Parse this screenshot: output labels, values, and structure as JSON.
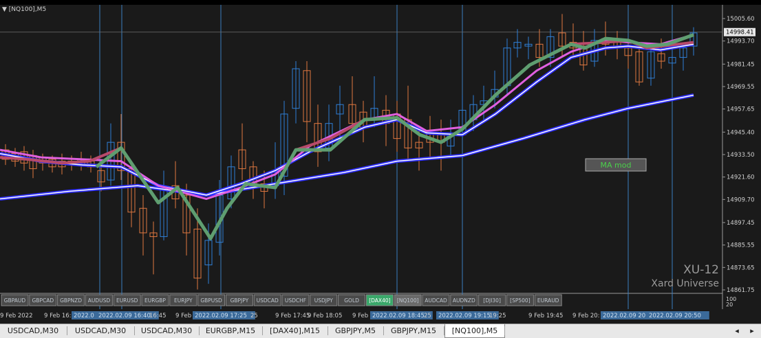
{
  "chart_title": "[NQ100],M5",
  "price_labels": [
    "15005.60",
    "14993.70",
    "14981.45",
    "14969.55",
    "14957.65",
    "14945.40",
    "14933.50",
    "14921.60",
    "14909.70",
    "14897.45",
    "14885.55",
    "14873.65",
    "14861.75"
  ],
  "current_price": "14998.41",
  "ma_label": "MA mod",
  "brand_line1": "XU-12",
  "brand_line2": "Xard Universe",
  "indicator_scale": [
    "100",
    "20"
  ],
  "symbol_buttons": [
    "GBPAUD",
    "GBPCAD",
    "GBPNZD",
    "AUDUSD",
    "EURUSD",
    "EURGBP",
    "EURJPY",
    "GBPUSD",
    "GBPJPY",
    "USDCAD",
    "USDCHF",
    "USDJPY",
    "GOLD",
    "[DAX40]",
    "[NQ100]",
    "AUDCAD",
    "AUDNZD",
    "[DJI30]",
    "[SP500]",
    "EURAUD"
  ],
  "time_labels": [
    "9 Feb 2022",
    "9 Feb 16:",
    "2022.0",
    "2022.02.09 16:40",
    "16:45",
    "9 Feb",
    "2022.02.09 17:25",
    "25",
    "9 Feb 17:45",
    "9 Feb 18:05",
    "9 Feb",
    "2022.02.09 18:45",
    "25",
    "2022.02.09 19:15",
    "19:25",
    "9 Feb 19:45",
    "9 Feb 20:",
    "2022.02.09 20",
    "2022.02.09 20:50"
  ],
  "bottom_tabs": [
    "USDCAD,M30",
    "USDCAD,M30",
    "USDCAD,M30",
    "EURGBP,M15",
    "[DAX40],M15",
    "GBPJPY,M5",
    "GBPJPY,M15",
    "[NQ100],M5"
  ],
  "active_tab": "[NQ100],M5",
  "colors": {
    "bull": "#2f7fd6",
    "bear": "#e07840",
    "ma_green": "#5f9e70",
    "ma_red": "#b84a6a",
    "ma_pink": "#e060e0",
    "band": "#ffffff",
    "band_blue": "#3030ff",
    "vline": "#3a7fc0"
  }
}
